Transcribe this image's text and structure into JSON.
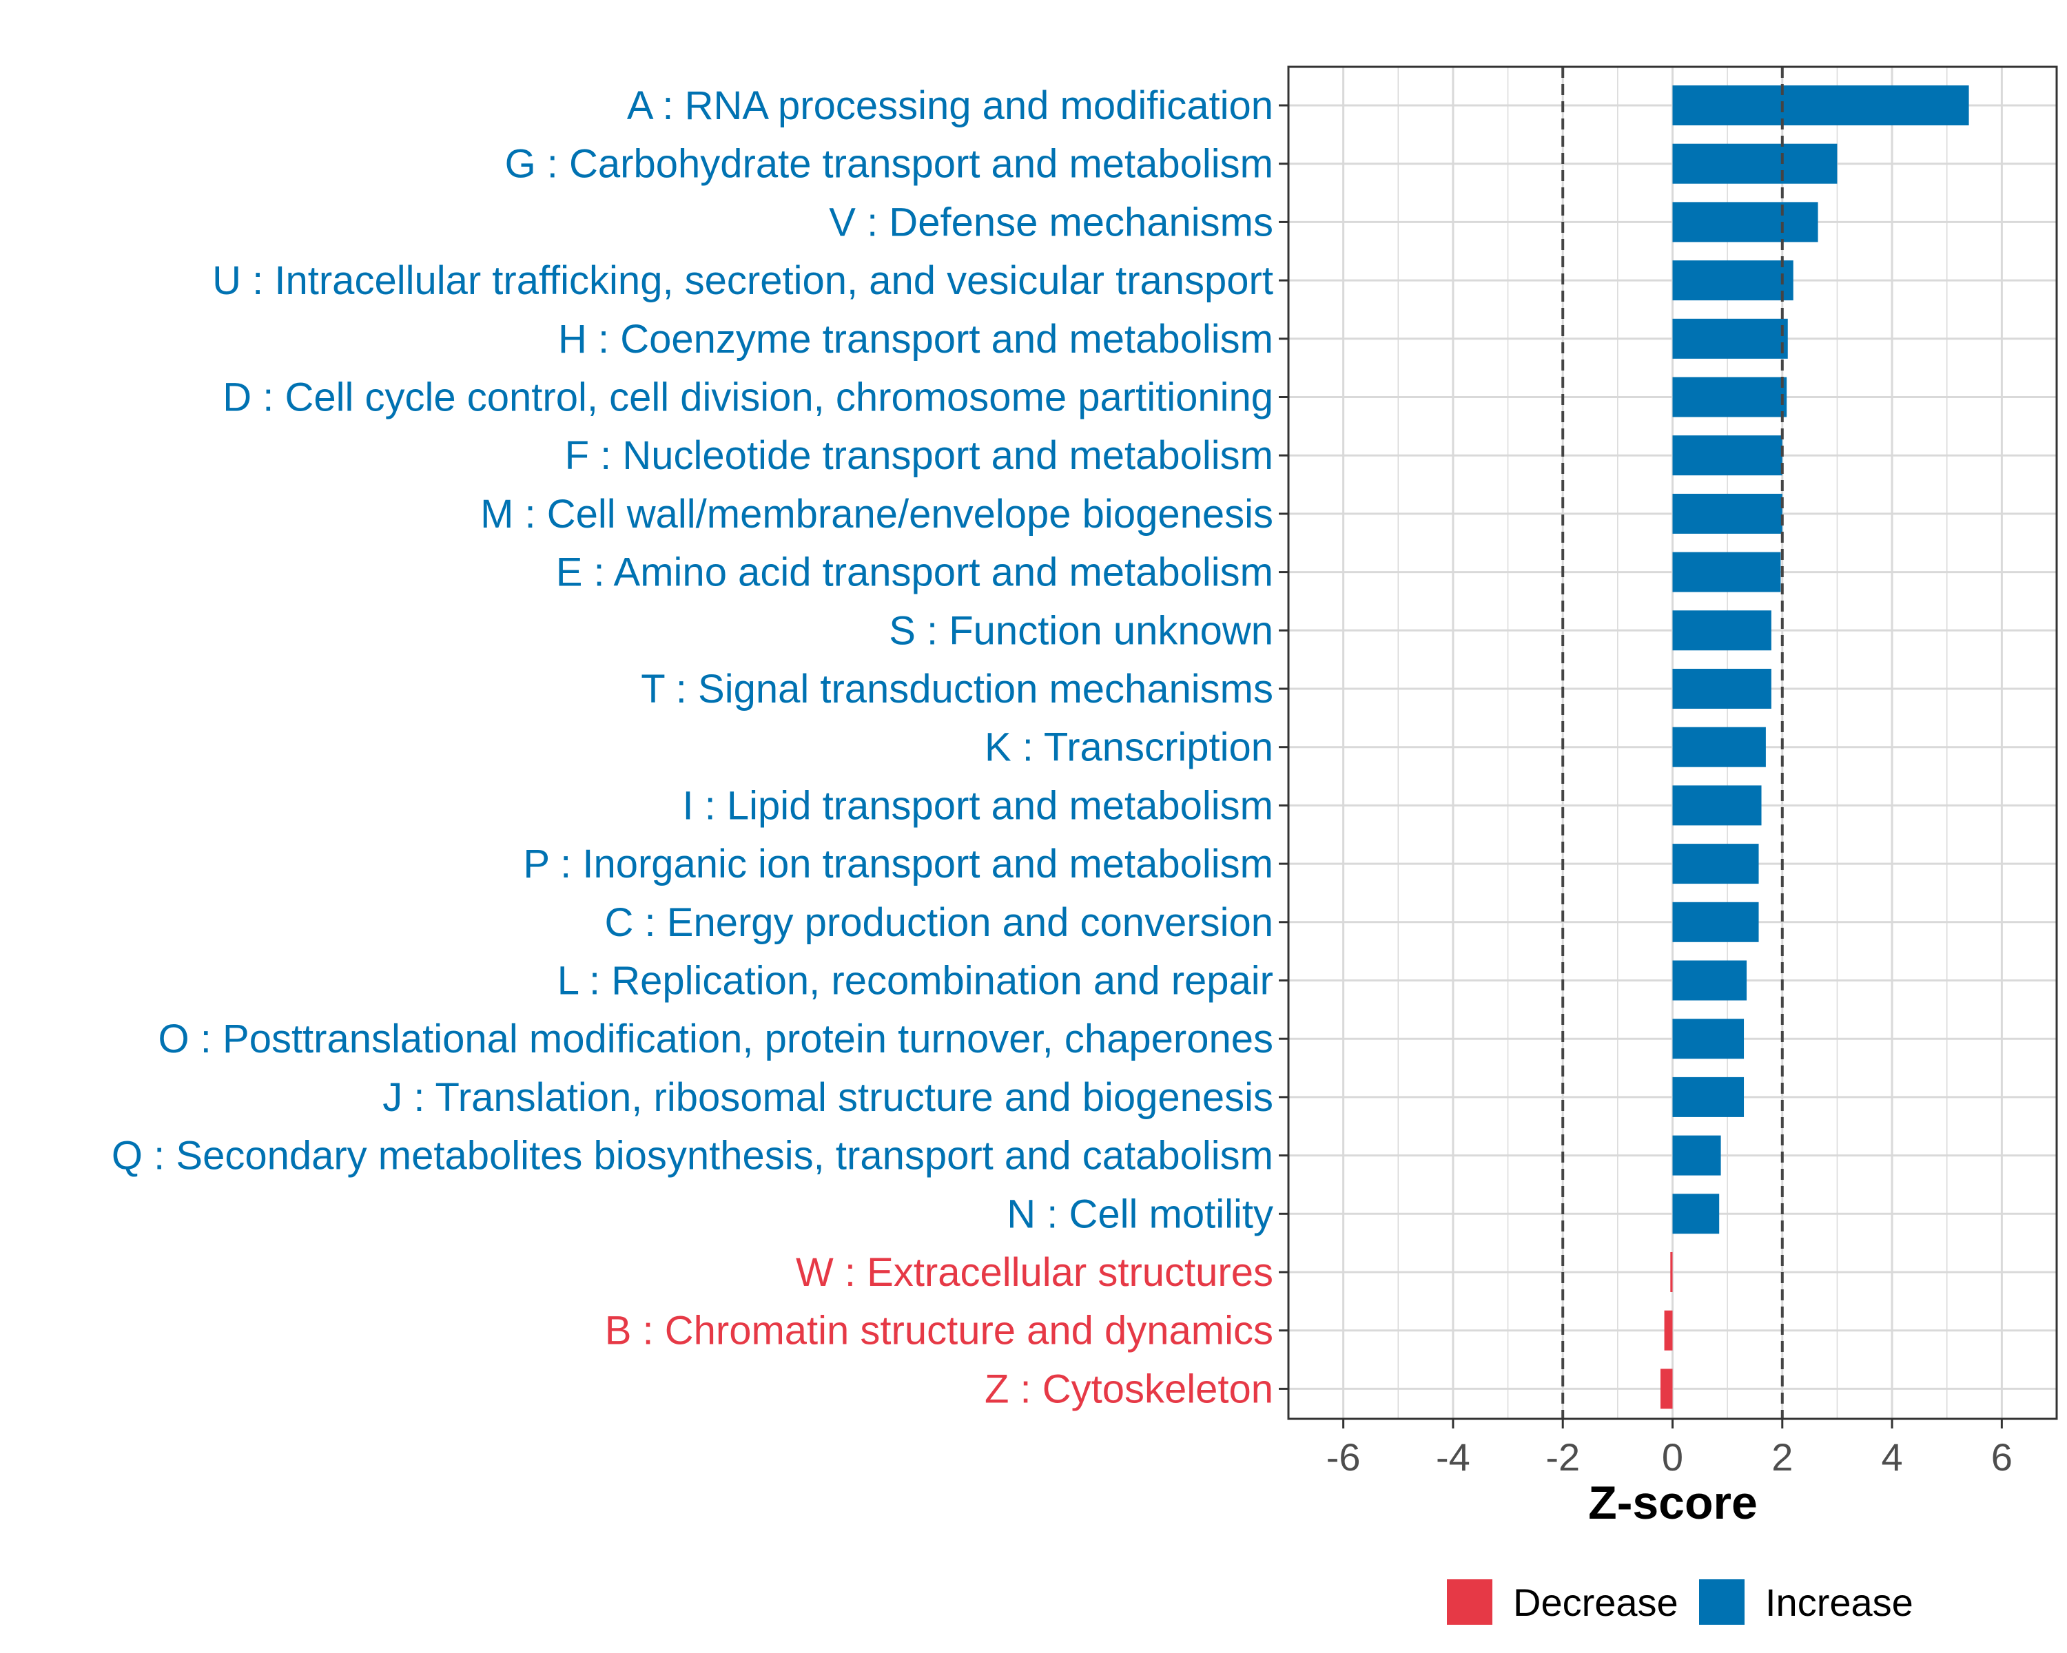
{
  "chart_data": {
    "type": "bar",
    "orientation": "horizontal",
    "xlabel": "Z-score",
    "xlim": [
      -7,
      7
    ],
    "xticks": [
      -6,
      -4,
      -2,
      0,
      2,
      4,
      6
    ],
    "xtick_labels": [
      "-6",
      "-4",
      "-2",
      "0",
      "2",
      "4",
      "6"
    ],
    "reference_lines": [
      -2,
      2
    ],
    "colors": {
      "Increase": "#0072b2",
      "Decrease": "#e63946"
    },
    "legend": {
      "position": "bottom",
      "labels": [
        "Decrease",
        "Increase"
      ]
    },
    "categories": [
      "A : RNA processing and modification",
      "G : Carbohydrate transport and metabolism",
      "V : Defense mechanisms",
      "U : Intracellular trafficking, secretion, and vesicular transport",
      "H : Coenzyme transport and metabolism",
      "D : Cell cycle control, cell division, chromosome partitioning",
      "F : Nucleotide transport and metabolism",
      "M : Cell wall/membrane/envelope biogenesis",
      "E : Amino acid transport and metabolism",
      "S : Function unknown",
      "T : Signal transduction mechanisms",
      "K : Transcription",
      "I : Lipid transport and metabolism",
      "P : Inorganic ion transport and metabolism",
      "C : Energy production and conversion",
      "L : Replication, recombination and repair",
      "O : Posttranslational modification, protein turnover, chaperones",
      "J : Translation, ribosomal structure and biogenesis",
      "Q : Secondary metabolites biosynthesis, transport and catabolism",
      "N : Cell motility",
      "W : Extracellular structures",
      "B : Chromatin structure and dynamics",
      "Z : Cytoskeleton"
    ],
    "values": [
      5.4,
      3.0,
      2.65,
      2.2,
      2.1,
      2.08,
      2.0,
      2.0,
      1.97,
      1.8,
      1.8,
      1.7,
      1.62,
      1.57,
      1.57,
      1.35,
      1.3,
      1.3,
      0.88,
      0.85,
      -0.04,
      -0.15,
      -0.22
    ],
    "direction": [
      "Increase",
      "Increase",
      "Increase",
      "Increase",
      "Increase",
      "Increase",
      "Increase",
      "Increase",
      "Increase",
      "Increase",
      "Increase",
      "Increase",
      "Increase",
      "Increase",
      "Increase",
      "Increase",
      "Increase",
      "Increase",
      "Increase",
      "Increase",
      "Decrease",
      "Decrease",
      "Decrease"
    ]
  }
}
